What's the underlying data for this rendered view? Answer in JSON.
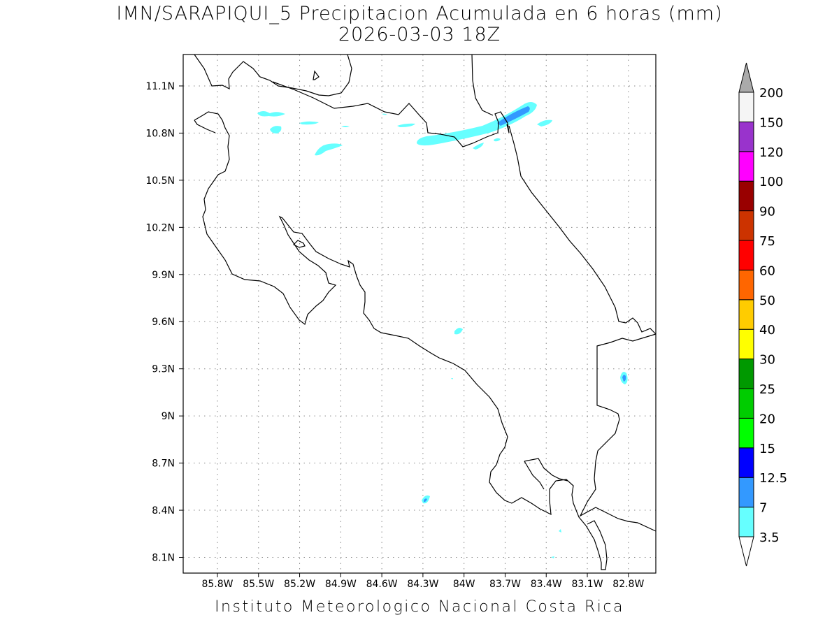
{
  "title_line1": "IMN/SARAPIQUI_5 Precipitacion Acumulada en 6 horas (mm)",
  "title_line2": "2026-03-03 18Z",
  "footer": "Instituto Meteorologico Nacional Costa Rica",
  "map": {
    "lon_range": [
      -86.05,
      -82.6
    ],
    "lat_range": [
      8.0,
      11.3
    ],
    "lon_ticks": [
      {
        "value": -85.8,
        "label": "85.8W"
      },
      {
        "value": -85.5,
        "label": "85.5W"
      },
      {
        "value": -85.2,
        "label": "85.2W"
      },
      {
        "value": -84.9,
        "label": "84.9W"
      },
      {
        "value": -84.6,
        "label": "84.6W"
      },
      {
        "value": -84.3,
        "label": "84.3W"
      },
      {
        "value": -84.0,
        "label": "84W"
      },
      {
        "value": -83.7,
        "label": "83.7W"
      },
      {
        "value": -83.4,
        "label": "83.4W"
      },
      {
        "value": -83.1,
        "label": "83.1W"
      },
      {
        "value": -82.8,
        "label": "82.8W"
      }
    ],
    "lat_ticks": [
      {
        "value": 11.1,
        "label": "11.1N"
      },
      {
        "value": 10.8,
        "label": "10.8N"
      },
      {
        "value": 10.5,
        "label": "10.5N"
      },
      {
        "value": 10.2,
        "label": "10.2N"
      },
      {
        "value": 9.9,
        "label": "9.9N"
      },
      {
        "value": 9.6,
        "label": "9.6N"
      },
      {
        "value": 9.3,
        "label": "9.3N"
      },
      {
        "value": 9.0,
        "label": "9N"
      },
      {
        "value": 8.7,
        "label": "8.7N"
      },
      {
        "value": 8.4,
        "label": "8.4N"
      },
      {
        "value": 8.1,
        "label": "8.1N"
      }
    ],
    "grid": "dotted"
  },
  "colorbar": {
    "upper_arrow_color": "#aaaaaa",
    "lower_arrow_color": "#ffffff",
    "levels": [
      {
        "label": "3.5",
        "color": "#66ffff"
      },
      {
        "label": "7",
        "color": "#3399ff"
      },
      {
        "label": "12.5",
        "color": "#0000ff"
      },
      {
        "label": "15",
        "color": "#00ff00"
      },
      {
        "label": "20",
        "color": "#00cc00"
      },
      {
        "label": "25",
        "color": "#009900"
      },
      {
        "label": "30",
        "color": "#ffff00"
      },
      {
        "label": "40",
        "color": "#ffcc00"
      },
      {
        "label": "50",
        "color": "#ff6600"
      },
      {
        "label": "60",
        "color": "#ff0000"
      },
      {
        "label": "75",
        "color": "#cc3300"
      },
      {
        "label": "90",
        "color": "#990000"
      },
      {
        "label": "100",
        "color": "#ff00ff"
      },
      {
        "label": "120",
        "color": "#9933cc"
      },
      {
        "label": "150",
        "color": "#f5f5f5"
      },
      {
        "label": "200",
        "color": ""
      }
    ]
  }
}
